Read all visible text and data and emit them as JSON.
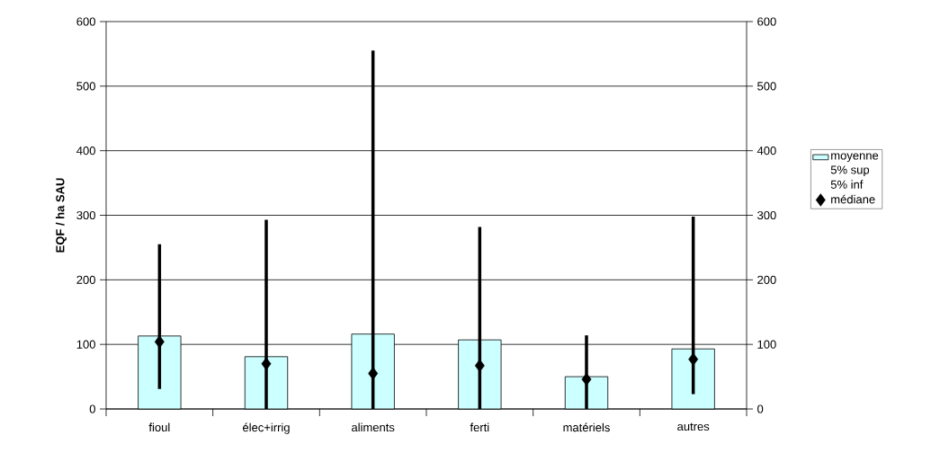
{
  "chart_data": {
    "type": "bar",
    "ylabel": "EQF / ha SAU",
    "categories": [
      "fioul",
      "élec+irrig",
      "aliments",
      "ferti",
      "matériels",
      "autres"
    ],
    "series": [
      {
        "name": "moyenne",
        "color": "#ccffff",
        "values": [
          113,
          81,
          116,
          107,
          50,
          93
        ]
      },
      {
        "name": "médiane",
        "type": "scatter",
        "marker": "diamond",
        "color": "#000000",
        "values": [
          104,
          70,
          55,
          67,
          46,
          77
        ],
        "errors": [
          [
            31,
            255
          ],
          [
            0,
            293
          ],
          [
            0,
            555
          ],
          [
            0,
            282
          ],
          [
            0,
            114
          ],
          [
            23,
            298
          ]
        ]
      }
    ],
    "annotations": [
      "5% sup",
      "5% inf"
    ],
    "ylim": [
      0,
      600
    ],
    "yticks": [
      0,
      100,
      200,
      300,
      400,
      500,
      600
    ],
    "y2lim": [
      0,
      600
    ],
    "y2ticks": [
      0,
      100,
      200,
      300,
      400,
      500,
      600
    ],
    "grid": "y",
    "legend": "right"
  }
}
